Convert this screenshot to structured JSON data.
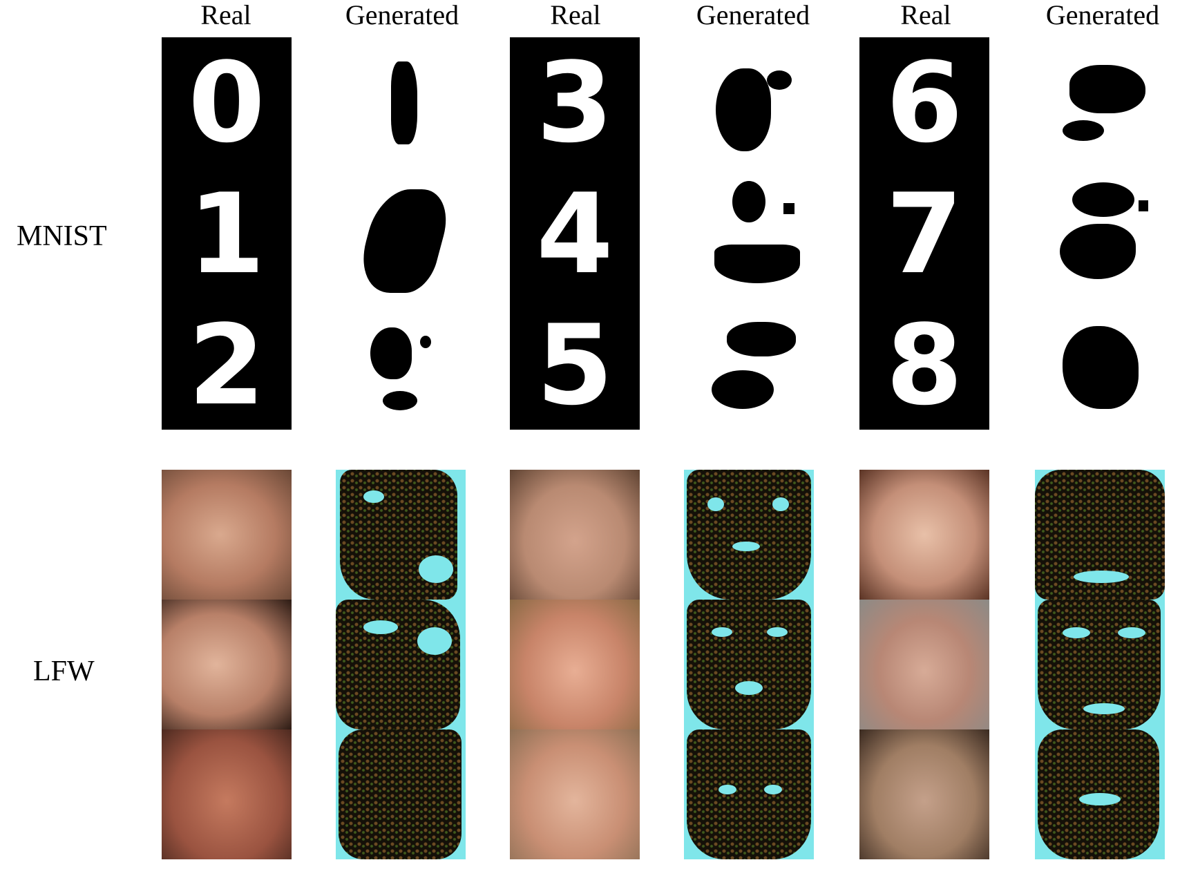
{
  "columns": [
    "Real",
    "Generated",
    "Real",
    "Generated",
    "Real",
    "Generated"
  ],
  "row_labels": {
    "mnist": "MNIST",
    "lfw": "LFW"
  },
  "mnist": {
    "real_digits": [
      [
        "0",
        "1",
        "2"
      ],
      [
        "3",
        "4",
        "5"
      ],
      [
        "6",
        "7",
        "8"
      ]
    ]
  },
  "colors": {
    "mnist_real_bg": "#000000",
    "generated_bg": "#7fe6ea",
    "generated_mass": "#141008"
  }
}
